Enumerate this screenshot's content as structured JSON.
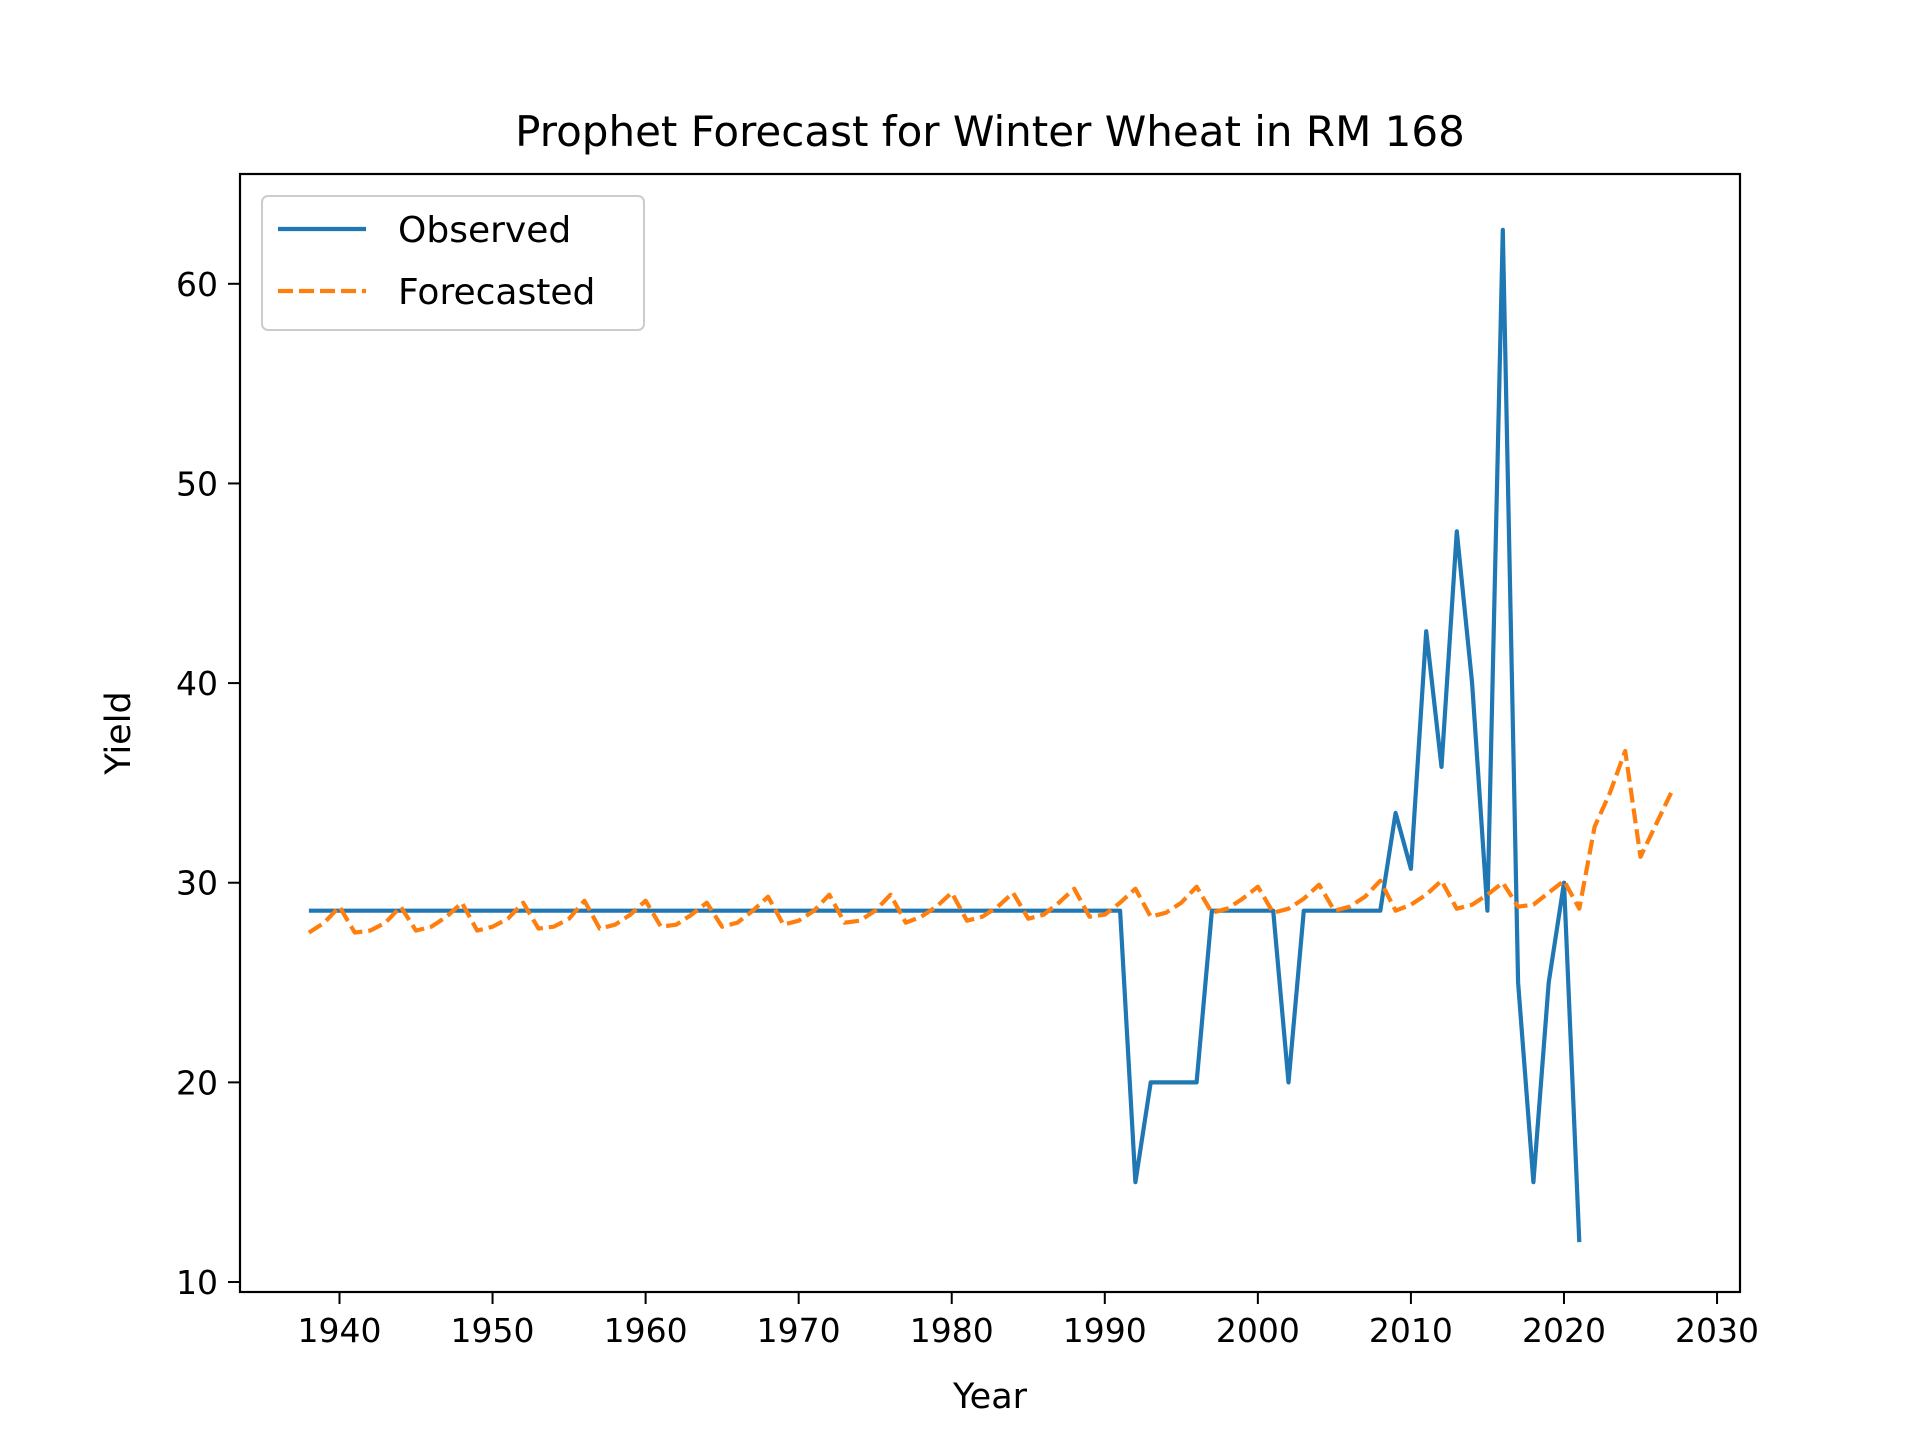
{
  "chart_data": {
    "type": "line",
    "title": "Prophet Forecast for Winter Wheat in RM 168",
    "xlabel": "Year",
    "ylabel": "Yield",
    "xlim": [
      1933.5,
      2031.5
    ],
    "ylim": [
      9.5,
      65.5
    ],
    "xticks": [
      1940,
      1950,
      1960,
      1970,
      1980,
      1990,
      2000,
      2010,
      2020,
      2030
    ],
    "yticks": [
      10,
      20,
      30,
      40,
      50,
      60
    ],
    "grid": false,
    "legend_position": "top-left",
    "series": [
      {
        "name": "Observed",
        "color": "#1f77b4",
        "style": "solid",
        "x": [
          1938,
          1939,
          1940,
          1941,
          1942,
          1943,
          1944,
          1945,
          1946,
          1947,
          1948,
          1949,
          1950,
          1951,
          1952,
          1953,
          1954,
          1955,
          1956,
          1957,
          1958,
          1959,
          1960,
          1961,
          1962,
          1963,
          1964,
          1965,
          1966,
          1967,
          1968,
          1969,
          1970,
          1971,
          1972,
          1973,
          1974,
          1975,
          1976,
          1977,
          1978,
          1979,
          1980,
          1981,
          1982,
          1983,
          1984,
          1985,
          1986,
          1987,
          1988,
          1989,
          1990,
          1991,
          1992,
          1993,
          1994,
          1995,
          1996,
          1997,
          1998,
          1999,
          2000,
          2001,
          2002,
          2003,
          2004,
          2005,
          2006,
          2007,
          2008,
          2009,
          2010,
          2011,
          2012,
          2013,
          2014,
          2015,
          2016,
          2017,
          2018,
          2019,
          2020,
          2021
        ],
        "y": [
          28.6,
          28.6,
          28.6,
          28.6,
          28.6,
          28.6,
          28.6,
          28.6,
          28.6,
          28.6,
          28.6,
          28.6,
          28.6,
          28.6,
          28.6,
          28.6,
          28.6,
          28.6,
          28.6,
          28.6,
          28.6,
          28.6,
          28.6,
          28.6,
          28.6,
          28.6,
          28.6,
          28.6,
          28.6,
          28.6,
          28.6,
          28.6,
          28.6,
          28.6,
          28.6,
          28.6,
          28.6,
          28.6,
          28.6,
          28.6,
          28.6,
          28.6,
          28.6,
          28.6,
          28.6,
          28.6,
          28.6,
          28.6,
          28.6,
          28.6,
          28.6,
          28.6,
          28.6,
          28.6,
          15.0,
          20.0,
          20.0,
          20.0,
          20.0,
          28.6,
          28.6,
          28.6,
          28.6,
          28.6,
          20.0,
          28.6,
          28.6,
          28.6,
          28.6,
          28.6,
          28.6,
          33.5,
          30.7,
          42.6,
          35.8,
          47.6,
          40.0,
          28.6,
          62.7,
          25.0,
          15.0,
          25.0,
          30.0,
          12.0
        ]
      },
      {
        "name": "Forecasted",
        "color": "#ff7f0e",
        "style": "dashed",
        "x": [
          1938,
          1939,
          1940,
          1941,
          1942,
          1943,
          1944,
          1945,
          1946,
          1947,
          1948,
          1949,
          1950,
          1951,
          1952,
          1953,
          1954,
          1955,
          1956,
          1957,
          1958,
          1959,
          1960,
          1961,
          1962,
          1963,
          1964,
          1965,
          1966,
          1967,
          1968,
          1969,
          1970,
          1971,
          1972,
          1973,
          1974,
          1975,
          1976,
          1977,
          1978,
          1979,
          1980,
          1981,
          1982,
          1983,
          1984,
          1985,
          1986,
          1987,
          1988,
          1989,
          1990,
          1991,
          1992,
          1993,
          1994,
          1995,
          1996,
          1997,
          1998,
          1999,
          2000,
          2001,
          2002,
          2003,
          2004,
          2005,
          2006,
          2007,
          2008,
          2009,
          2010,
          2011,
          2012,
          2013,
          2014,
          2015,
          2016,
          2017,
          2018,
          2019,
          2020,
          2021,
          2022,
          2023,
          2024,
          2025,
          2026,
          2027
        ],
        "y": [
          27.5,
          28.0,
          28.8,
          27.5,
          27.6,
          28.0,
          28.8,
          27.6,
          27.8,
          28.3,
          29.0,
          27.6,
          27.8,
          28.2,
          29.0,
          27.7,
          27.8,
          28.2,
          29.1,
          27.7,
          27.9,
          28.4,
          29.1,
          27.8,
          27.9,
          28.4,
          29.0,
          27.8,
          28.0,
          28.6,
          29.3,
          27.9,
          28.1,
          28.6,
          29.4,
          28.0,
          28.1,
          28.6,
          29.4,
          28.0,
          28.3,
          28.8,
          29.5,
          28.1,
          28.3,
          28.8,
          29.5,
          28.2,
          28.4,
          29.0,
          29.7,
          28.3,
          28.4,
          29.0,
          29.7,
          28.3,
          28.5,
          29.0,
          29.8,
          28.5,
          28.7,
          29.2,
          29.8,
          28.5,
          28.7,
          29.2,
          29.9,
          28.6,
          28.8,
          29.3,
          30.1,
          28.6,
          28.9,
          29.4,
          30.1,
          28.7,
          28.9,
          29.4,
          30.0,
          28.8,
          28.9,
          29.5,
          30.1,
          28.7,
          32.8,
          34.5,
          36.6,
          31.3,
          32.9,
          34.5
        ]
      }
    ]
  }
}
